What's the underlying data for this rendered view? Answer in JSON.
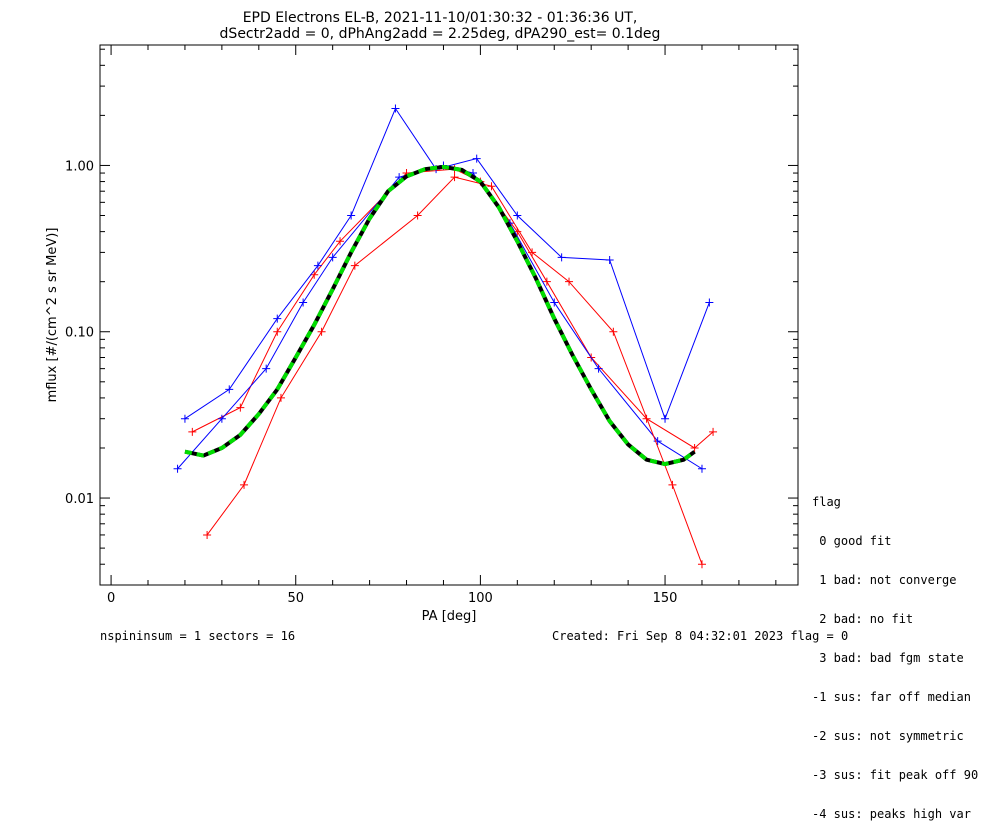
{
  "chart_data": {
    "type": "line",
    "title": "EPD Electrons EL-B, 2021-11-10/01:30:32 - 01:36:36 UT,",
    "subtitle": "dSectr2add = 0, dPhAng2add = 2.25deg, dPA290_est=   0.1deg",
    "xlabel": "PA [deg]",
    "ylabel": "mflux [#/(cm^2 s sr MeV)]",
    "xlim": [
      -3,
      186
    ],
    "ylim": [
      0.003,
      5.3
    ],
    "yscale": "log",
    "xticks": [
      0,
      50,
      100,
      150
    ],
    "yticks": [
      0.01,
      0.1,
      1.0
    ],
    "ytick_labels": [
      "0.01",
      "0.10",
      "1.00"
    ],
    "colors": {
      "series_a": "#ff0000",
      "series_b": "#0000ff",
      "fit": "#00dd00",
      "fit_dark": "#000000"
    },
    "fit_curve": {
      "x": [
        20,
        25,
        30,
        35,
        40,
        45,
        50,
        55,
        60,
        65,
        70,
        75,
        80,
        85,
        90,
        95,
        100,
        105,
        110,
        115,
        120,
        125,
        130,
        135,
        140,
        145,
        150,
        155,
        158
      ],
      "y": [
        0.019,
        0.018,
        0.02,
        0.024,
        0.032,
        0.045,
        0.07,
        0.11,
        0.18,
        0.3,
        0.48,
        0.7,
        0.86,
        0.95,
        0.98,
        0.94,
        0.8,
        0.56,
        0.35,
        0.21,
        0.12,
        0.072,
        0.045,
        0.029,
        0.021,
        0.017,
        0.016,
        0.017,
        0.019
      ]
    },
    "series": [
      {
        "color": "red",
        "x": [
          22,
          35,
          45,
          55,
          62,
          80,
          93,
          100,
          110,
          118,
          130,
          145,
          158,
          163
        ],
        "y": [
          0.025,
          0.035,
          0.1,
          0.22,
          0.35,
          0.9,
          0.95,
          0.8,
          0.4,
          0.2,
          0.07,
          0.03,
          0.02,
          0.025
        ]
      },
      {
        "color": "blue",
        "x": [
          18,
          30,
          42,
          52,
          60,
          78,
          90,
          98,
          108,
          120,
          132,
          148,
          160
        ],
        "y": [
          0.015,
          0.03,
          0.06,
          0.15,
          0.28,
          0.85,
          1.0,
          0.9,
          0.45,
          0.15,
          0.06,
          0.022,
          0.015
        ]
      },
      {
        "color": "blue",
        "x": [
          20,
          32,
          45,
          56,
          65,
          77,
          88,
          99,
          110,
          122,
          135,
          150,
          162
        ],
        "y": [
          0.03,
          0.045,
          0.12,
          0.25,
          0.5,
          2.2,
          0.95,
          1.1,
          0.5,
          0.28,
          0.27,
          0.03,
          0.15
        ]
      },
      {
        "color": "red",
        "x": [
          26,
          36,
          46,
          57,
          66,
          83,
          93,
          103,
          114,
          124,
          136,
          152,
          160
        ],
        "y": [
          0.006,
          0.012,
          0.04,
          0.1,
          0.25,
          0.5,
          0.85,
          0.75,
          0.3,
          0.2,
          0.1,
          0.012,
          0.004
        ]
      }
    ]
  },
  "legend": {
    "title": "flag",
    "items": [
      " 0 good fit",
      " 1 bad: not converge",
      " 2 bad: no fit",
      " 3 bad: bad fgm state",
      "-1 sus: far off median",
      "-2 sus: not symmetric",
      "-3 sus: fit peak off 90",
      "-4 sus: peaks high var"
    ]
  },
  "footer": {
    "left": "nspininsum =  1  sectors = 16",
    "right": "Created: Fri Sep  8 04:32:01 2023   flag = 0"
  }
}
